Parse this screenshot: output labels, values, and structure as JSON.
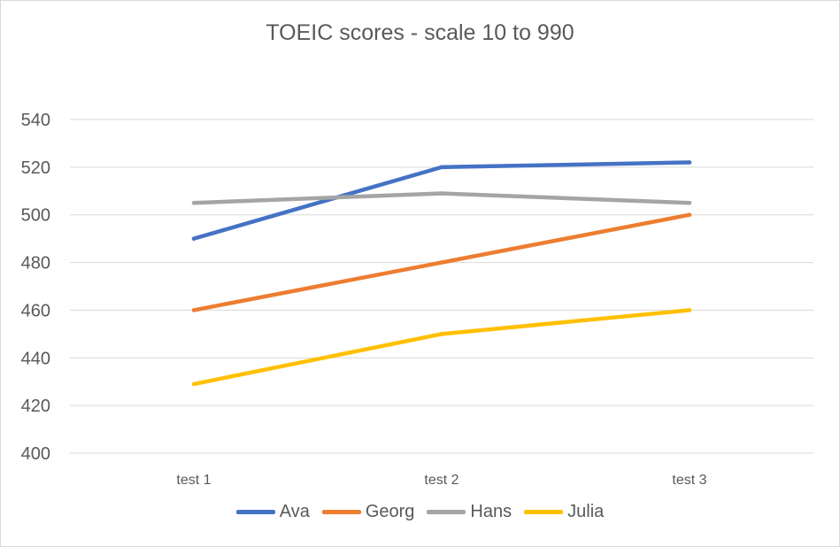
{
  "chart_data": {
    "type": "line",
    "title": "TOEIC scores - scale 10 to 990",
    "xlabel": "",
    "ylabel": "",
    "categories": [
      "test 1",
      "test 2",
      "test 3"
    ],
    "ylim": [
      400,
      540
    ],
    "yticks": [
      "400",
      "420",
      "440",
      "460",
      "480",
      "500",
      "520",
      "540"
    ],
    "grid": true,
    "legend_position": "bottom",
    "series": [
      {
        "name": "Ava",
        "color": "#4472c4",
        "values": [
          490,
          520,
          522
        ]
      },
      {
        "name": "Georg",
        "color": "#ed7d31",
        "values": [
          460,
          480,
          500
        ]
      },
      {
        "name": "Hans",
        "color": "#a5a5a5",
        "values": [
          505,
          509,
          505
        ]
      },
      {
        "name": "Julia",
        "color": "#ffc000",
        "values": [
          429,
          450,
          460
        ]
      }
    ]
  }
}
